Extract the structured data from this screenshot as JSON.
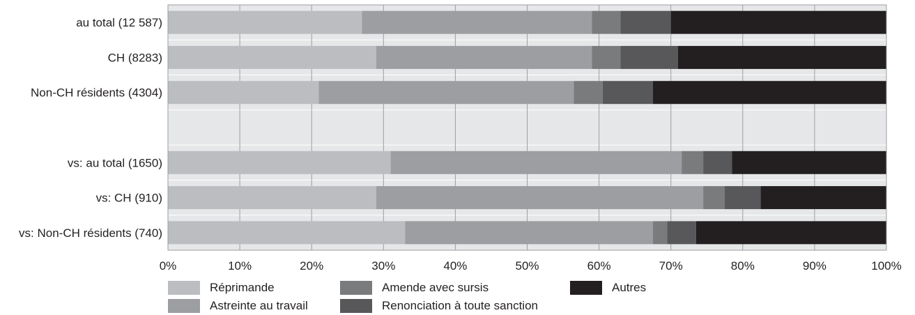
{
  "chart_data": {
    "type": "bar",
    "orientation": "horizontal",
    "stacked": true,
    "title": "",
    "xlabel": "",
    "ylabel": "",
    "xlim": [
      0,
      100
    ],
    "grid": true,
    "legend_position": "bottom",
    "x_ticks": [
      "0%",
      "10%",
      "20%",
      "30%",
      "40%",
      "50%",
      "60%",
      "70%",
      "80%",
      "90%",
      "100%"
    ],
    "categories": [
      "au total (12 587)",
      "CH (8283)",
      "Non-CH résidents (4304)",
      "",
      "vs: au total (1650)",
      "vs: CH (910)",
      "vs: Non-CH résidents (740)"
    ],
    "series": [
      {
        "name": "Réprimande",
        "color": "#bcbdc0",
        "values": [
          27,
          29,
          21,
          null,
          31,
          29,
          33
        ]
      },
      {
        "name": "Astreinte au travail",
        "color": "#9d9ea1",
        "values": [
          32,
          30,
          35.5,
          null,
          40.5,
          45.5,
          34.5
        ]
      },
      {
        "name": "Amende avec sursis",
        "color": "#7a7b7d",
        "values": [
          4,
          4,
          4,
          null,
          3,
          3,
          2
        ]
      },
      {
        "name": "Renonciation à toute sanction",
        "color": "#58585a",
        "values": [
          7,
          8,
          7,
          null,
          4,
          5,
          4
        ]
      },
      {
        "name": "Autres",
        "color": "#231f20",
        "values": [
          30,
          29,
          32.5,
          null,
          21.5,
          17.5,
          26.5
        ]
      }
    ],
    "colors": {
      "plot_background": "#e6e7e8",
      "gridline": "#9d9ea1",
      "text": "#231f20"
    }
  },
  "legend": [
    {
      "label": "Réprimande",
      "color": "#bcbdc0"
    },
    {
      "label": "Astreinte au travail",
      "color": "#9d9ea1"
    },
    {
      "label": "Amende avec sursis",
      "color": "#7a7b7d"
    },
    {
      "label": "Renonciation à toute sanction",
      "color": "#58585a"
    },
    {
      "label": "Autres",
      "color": "#231f20"
    }
  ]
}
